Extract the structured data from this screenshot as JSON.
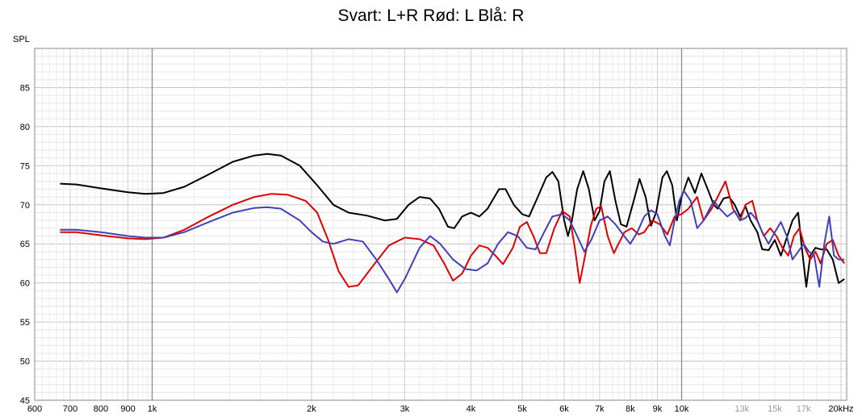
{
  "chart_data": {
    "type": "line",
    "title": "Svart: L+R Rød: L Blå: R",
    "ylabel": "SPL",
    "x_scale": "log",
    "xlim": [
      600,
      20500
    ],
    "ylim": [
      45,
      90
    ],
    "grid": true,
    "x_ticks": [
      {
        "value": 600,
        "label": "600"
      },
      {
        "value": 700,
        "label": "700"
      },
      {
        "value": 800,
        "label": "800"
      },
      {
        "value": 900,
        "label": "900"
      },
      {
        "value": 1000,
        "label": "1k"
      },
      {
        "value": 2000,
        "label": "2k"
      },
      {
        "value": 3000,
        "label": "3k"
      },
      {
        "value": 4000,
        "label": "4k"
      },
      {
        "value": 5000,
        "label": "5k"
      },
      {
        "value": 6000,
        "label": "6k"
      },
      {
        "value": 7000,
        "label": "7k"
      },
      {
        "value": 8000,
        "label": "8k"
      },
      {
        "value": 9000,
        "label": "9k"
      },
      {
        "value": 10000,
        "label": "10k"
      },
      {
        "value": 13000,
        "label": "13k",
        "muted": true
      },
      {
        "value": 15000,
        "label": "15k",
        "muted": true
      },
      {
        "value": 17000,
        "label": "17k",
        "muted": true
      },
      {
        "value": 20000,
        "label": "20kHz"
      }
    ],
    "y_ticks": [
      45,
      50,
      55,
      60,
      65,
      70,
      75,
      80,
      85
    ],
    "series": [
      {
        "color": "#000000",
        "points": [
          [
            670,
            72.7
          ],
          [
            720,
            72.6
          ],
          [
            800,
            72.1
          ],
          [
            900,
            71.6
          ],
          [
            970,
            71.4
          ],
          [
            1050,
            71.5
          ],
          [
            1150,
            72.3
          ],
          [
            1280,
            73.9
          ],
          [
            1420,
            75.5
          ],
          [
            1560,
            76.3
          ],
          [
            1650,
            76.5
          ],
          [
            1750,
            76.3
          ],
          [
            1900,
            75.0
          ],
          [
            2050,
            72.5
          ],
          [
            2200,
            70.0
          ],
          [
            2350,
            69.0
          ],
          [
            2550,
            68.6
          ],
          [
            2750,
            68.0
          ],
          [
            2900,
            68.2
          ],
          [
            3050,
            70.0
          ],
          [
            3200,
            71.0
          ],
          [
            3350,
            70.8
          ],
          [
            3480,
            69.5
          ],
          [
            3620,
            67.2
          ],
          [
            3720,
            67.0
          ],
          [
            3850,
            68.5
          ],
          [
            4000,
            69.0
          ],
          [
            4150,
            68.5
          ],
          [
            4300,
            69.5
          ],
          [
            4520,
            72.0
          ],
          [
            4650,
            72.0
          ],
          [
            4820,
            70.0
          ],
          [
            5000,
            68.8
          ],
          [
            5150,
            68.5
          ],
          [
            5350,
            71.0
          ],
          [
            5550,
            73.5
          ],
          [
            5700,
            74.2
          ],
          [
            5850,
            73.0
          ],
          [
            6000,
            68.0
          ],
          [
            6100,
            66.0
          ],
          [
            6200,
            67.8
          ],
          [
            6350,
            72.0
          ],
          [
            6520,
            74.3
          ],
          [
            6680,
            72.0
          ],
          [
            6850,
            68.0
          ],
          [
            7000,
            69.2
          ],
          [
            7150,
            73.0
          ],
          [
            7320,
            74.3
          ],
          [
            7500,
            70.5
          ],
          [
            7680,
            67.5
          ],
          [
            7870,
            67.2
          ],
          [
            8080,
            70.0
          ],
          [
            8330,
            73.3
          ],
          [
            8550,
            71.0
          ],
          [
            8750,
            67.3
          ],
          [
            8950,
            69.0
          ],
          [
            9200,
            73.5
          ],
          [
            9380,
            74.3
          ],
          [
            9600,
            72.5
          ],
          [
            9800,
            68.0
          ],
          [
            10000,
            71.0
          ],
          [
            10300,
            73.5
          ],
          [
            10600,
            71.5
          ],
          [
            10900,
            74.0
          ],
          [
            11200,
            72.0
          ],
          [
            11500,
            70.0
          ],
          [
            11700,
            69.5
          ],
          [
            12000,
            70.8
          ],
          [
            12300,
            71.0
          ],
          [
            12600,
            70.0
          ],
          [
            12900,
            68.5
          ],
          [
            13200,
            69.8
          ],
          [
            13500,
            68.0
          ],
          [
            13900,
            66.5
          ],
          [
            14200,
            64.3
          ],
          [
            14600,
            64.2
          ],
          [
            15000,
            65.5
          ],
          [
            15400,
            63.5
          ],
          [
            15800,
            65.8
          ],
          [
            16200,
            68.0
          ],
          [
            16600,
            69.0
          ],
          [
            16900,
            64.0
          ],
          [
            17200,
            59.5
          ],
          [
            17500,
            63.5
          ],
          [
            17900,
            64.5
          ],
          [
            18300,
            64.3
          ],
          [
            18800,
            64.3
          ],
          [
            19300,
            63.0
          ],
          [
            19800,
            60.0
          ],
          [
            20300,
            60.5
          ]
        ]
      },
      {
        "color": "#e00000",
        "points": [
          [
            670,
            66.5
          ],
          [
            720,
            66.5
          ],
          [
            800,
            66.1
          ],
          [
            900,
            65.7
          ],
          [
            970,
            65.6
          ],
          [
            1050,
            65.8
          ],
          [
            1150,
            66.8
          ],
          [
            1280,
            68.5
          ],
          [
            1420,
            70.0
          ],
          [
            1560,
            71.0
          ],
          [
            1680,
            71.4
          ],
          [
            1800,
            71.3
          ],
          [
            1950,
            70.5
          ],
          [
            2050,
            69.0
          ],
          [
            2150,
            65.5
          ],
          [
            2250,
            61.5
          ],
          [
            2350,
            59.5
          ],
          [
            2450,
            59.7
          ],
          [
            2600,
            62.0
          ],
          [
            2800,
            64.8
          ],
          [
            3000,
            65.8
          ],
          [
            3200,
            65.6
          ],
          [
            3400,
            64.8
          ],
          [
            3560,
            62.5
          ],
          [
            3700,
            60.3
          ],
          [
            3850,
            61.2
          ],
          [
            4000,
            63.5
          ],
          [
            4150,
            64.8
          ],
          [
            4300,
            64.5
          ],
          [
            4450,
            63.5
          ],
          [
            4600,
            62.4
          ],
          [
            4800,
            64.5
          ],
          [
            4950,
            67.2
          ],
          [
            5100,
            67.8
          ],
          [
            5250,
            66.0
          ],
          [
            5400,
            63.8
          ],
          [
            5550,
            63.8
          ],
          [
            5750,
            67.0
          ],
          [
            5950,
            69.2
          ],
          [
            6150,
            68.5
          ],
          [
            6300,
            64.0
          ],
          [
            6420,
            60.0
          ],
          [
            6550,
            63.0
          ],
          [
            6750,
            67.5
          ],
          [
            6900,
            69.5
          ],
          [
            7050,
            69.8
          ],
          [
            7250,
            66.0
          ],
          [
            7450,
            63.8
          ],
          [
            7600,
            65.0
          ],
          [
            7800,
            66.5
          ],
          [
            8050,
            67.0
          ],
          [
            8300,
            66.2
          ],
          [
            8500,
            66.5
          ],
          [
            8800,
            68.0
          ],
          [
            9100,
            67.5
          ],
          [
            9400,
            66.2
          ],
          [
            9700,
            68.5
          ],
          [
            10000,
            68.8
          ],
          [
            10300,
            69.5
          ],
          [
            10700,
            71.0
          ],
          [
            11000,
            68.0
          ],
          [
            11400,
            69.5
          ],
          [
            11700,
            71.0
          ],
          [
            12100,
            73.0
          ],
          [
            12500,
            69.5
          ],
          [
            12900,
            68.0
          ],
          [
            13200,
            70.0
          ],
          [
            13600,
            70.5
          ],
          [
            13900,
            68.0
          ],
          [
            14300,
            66.0
          ],
          [
            14700,
            67.0
          ],
          [
            15100,
            66.0
          ],
          [
            15500,
            64.5
          ],
          [
            15900,
            63.5
          ],
          [
            16300,
            66.0
          ],
          [
            16700,
            67.0
          ],
          [
            17100,
            64.5
          ],
          [
            17500,
            63.0
          ],
          [
            17900,
            64.0
          ],
          [
            18300,
            62.5
          ],
          [
            18800,
            65.0
          ],
          [
            19300,
            65.5
          ],
          [
            19800,
            63.5
          ],
          [
            20300,
            62.5
          ]
        ]
      },
      {
        "color": "#4040b8",
        "points": [
          [
            670,
            66.8
          ],
          [
            720,
            66.8
          ],
          [
            800,
            66.5
          ],
          [
            900,
            66.0
          ],
          [
            970,
            65.8
          ],
          [
            1050,
            65.8
          ],
          [
            1150,
            66.5
          ],
          [
            1280,
            67.8
          ],
          [
            1420,
            69.0
          ],
          [
            1560,
            69.6
          ],
          [
            1650,
            69.7
          ],
          [
            1750,
            69.5
          ],
          [
            1900,
            68.0
          ],
          [
            2000,
            66.5
          ],
          [
            2100,
            65.3
          ],
          [
            2200,
            65.0
          ],
          [
            2350,
            65.6
          ],
          [
            2500,
            65.3
          ],
          [
            2650,
            63.0
          ],
          [
            2800,
            60.5
          ],
          [
            2900,
            58.8
          ],
          [
            3000,
            60.5
          ],
          [
            3200,
            64.5
          ],
          [
            3350,
            66.0
          ],
          [
            3500,
            65.0
          ],
          [
            3700,
            63.0
          ],
          [
            3900,
            61.8
          ],
          [
            4100,
            61.6
          ],
          [
            4300,
            62.5
          ],
          [
            4500,
            65.0
          ],
          [
            4700,
            66.5
          ],
          [
            4900,
            66.0
          ],
          [
            5100,
            64.5
          ],
          [
            5300,
            64.3
          ],
          [
            5500,
            66.5
          ],
          [
            5700,
            68.5
          ],
          [
            5950,
            68.8
          ],
          [
            6150,
            68.0
          ],
          [
            6350,
            66.0
          ],
          [
            6550,
            64.0
          ],
          [
            6750,
            65.5
          ],
          [
            7000,
            68.0
          ],
          [
            7250,
            68.5
          ],
          [
            7500,
            67.5
          ],
          [
            7750,
            66.2
          ],
          [
            8000,
            65.0
          ],
          [
            8250,
            66.5
          ],
          [
            8500,
            68.5
          ],
          [
            8750,
            69.3
          ],
          [
            9000,
            68.8
          ],
          [
            9300,
            66.0
          ],
          [
            9500,
            64.8
          ],
          [
            9700,
            68.0
          ],
          [
            9900,
            70.5
          ],
          [
            10100,
            71.8
          ],
          [
            10400,
            70.5
          ],
          [
            10700,
            67.0
          ],
          [
            11000,
            68.0
          ],
          [
            11500,
            70.5
          ],
          [
            11800,
            69.5
          ],
          [
            12200,
            68.5
          ],
          [
            12600,
            69.2
          ],
          [
            12900,
            68.0
          ],
          [
            13200,
            68.3
          ],
          [
            13500,
            69.0
          ],
          [
            13900,
            68.0
          ],
          [
            14200,
            66.5
          ],
          [
            14600,
            65.0
          ],
          [
            15000,
            66.5
          ],
          [
            15400,
            67.8
          ],
          [
            15800,
            66.0
          ],
          [
            16200,
            63.0
          ],
          [
            16600,
            64.0
          ],
          [
            17000,
            65.0
          ],
          [
            17400,
            64.0
          ],
          [
            17800,
            63.5
          ],
          [
            18200,
            59.5
          ],
          [
            18600,
            65.0
          ],
          [
            19000,
            68.5
          ],
          [
            19400,
            63.5
          ],
          [
            19800,
            63.0
          ],
          [
            20300,
            63.0
          ]
        ]
      }
    ]
  }
}
